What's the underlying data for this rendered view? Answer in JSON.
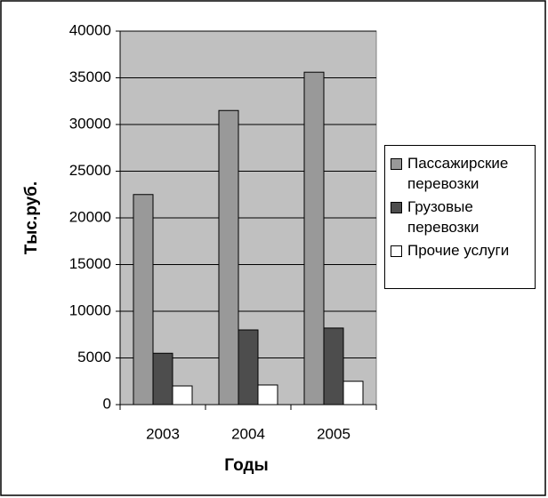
{
  "chart_data": {
    "type": "bar",
    "categories": [
      "2003",
      "2004",
      "2005"
    ],
    "series": [
      {
        "name": "Пассажирские перевозки",
        "color": "#999999",
        "values": [
          22500,
          31500,
          35600
        ]
      },
      {
        "name": "Грузовые перевозки",
        "color": "#4d4d4d",
        "values": [
          5500,
          8000,
          8200
        ]
      },
      {
        "name": "Прочие услуги",
        "color": "#ffffff",
        "values": [
          2000,
          2100,
          2500
        ]
      }
    ],
    "x_label": "Годы",
    "y_label": "Тыс.руб.",
    "ylim": [
      0,
      40000
    ],
    "yticks": [
      0,
      5000,
      10000,
      15000,
      20000,
      25000,
      30000,
      35000,
      40000
    ],
    "grid": true,
    "legend": "right",
    "plot_background": "#c0c0c0"
  }
}
